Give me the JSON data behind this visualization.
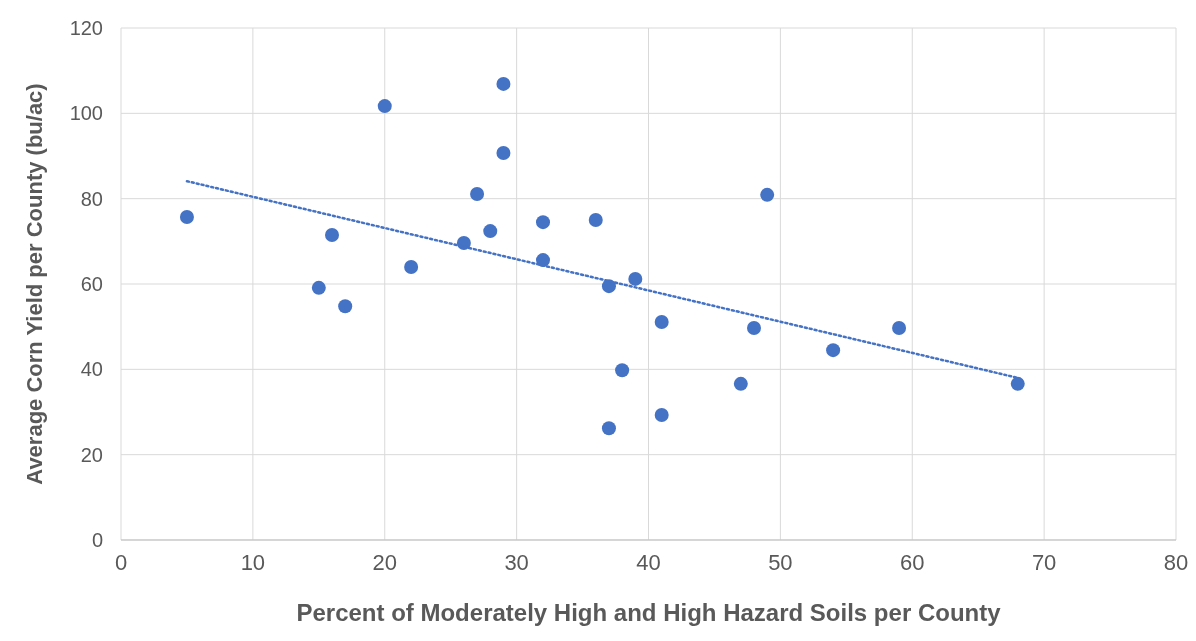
{
  "chart_data": {
    "type": "scatter",
    "xlabel": "Percent of Moderately High and High Hazard Soils per County",
    "ylabel": "Average Corn Yield per County (bu/ac)",
    "xlim": [
      0,
      80
    ],
    "xticks": [
      0,
      10,
      20,
      30,
      40,
      50,
      60,
      70,
      80
    ],
    "ylim": [
      0,
      120
    ],
    "yticks": [
      0,
      20,
      40,
      60,
      80,
      100,
      120
    ],
    "grid": true,
    "marker": "circle",
    "series": [
      {
        "color": "#4472c4",
        "x": [
          5,
          15,
          16,
          17,
          20,
          22,
          26,
          27,
          28,
          29,
          29,
          32,
          32,
          36,
          37,
          37,
          38,
          39,
          41,
          41,
          47,
          48,
          49,
          54,
          59,
          68
        ],
        "values": [
          75.7,
          59.1,
          71.5,
          54.8,
          101.7,
          64,
          69.6,
          81.1,
          72.4,
          106.9,
          90.7,
          74.5,
          65.6,
          75,
          59.5,
          26.2,
          39.8,
          61.2,
          51.1,
          29.3,
          36.6,
          49.7,
          80.9,
          44.5,
          49.7,
          36.6
        ]
      },
      {
        "type": "line",
        "color": "#4472c4",
        "line_style": "dotted",
        "marker": "none",
        "x": [
          5,
          68
        ],
        "values": [
          84.1,
          38
        ]
      }
    ]
  }
}
